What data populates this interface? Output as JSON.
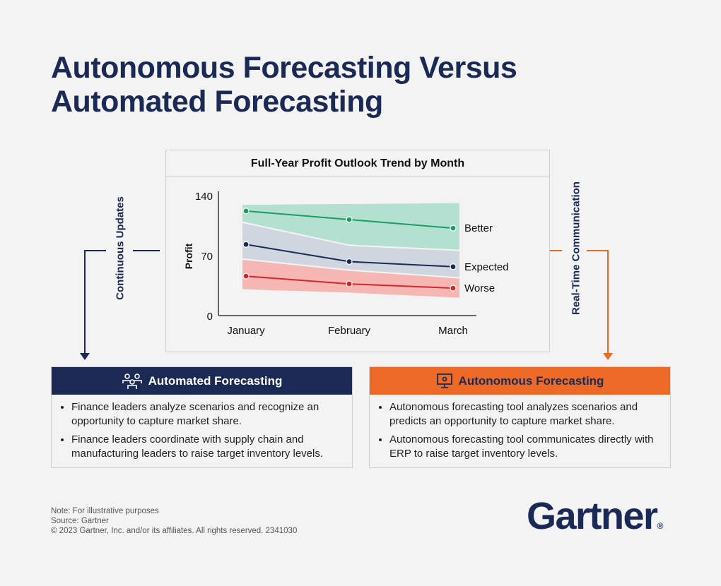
{
  "title_line1": "Autonomous Forecasting Versus",
  "title_line2": "Automated Forecasting",
  "left_flow_label": "Continuous Updates",
  "right_flow_label": "Real-Time Communication",
  "chart_data": {
    "type": "line",
    "title": "Full-Year Profit Outlook Trend by Month",
    "ylabel": "Profit",
    "xlabel": "",
    "categories": [
      "January",
      "February",
      "March"
    ],
    "ylim": [
      0,
      140
    ],
    "yticks": [
      0,
      70,
      140
    ],
    "series": [
      {
        "name": "Better",
        "color": "#1a9e64",
        "band_color": "#b4e0d1",
        "values": [
          122,
          112,
          102
        ],
        "band": [
          [
            109,
            130
          ],
          [
            82,
            131
          ],
          [
            76,
            132
          ]
        ]
      },
      {
        "name": "Expected",
        "color": "#1b2a55",
        "band_color": "#cfd6e0",
        "values": [
          83,
          63,
          57
        ],
        "band": [
          [
            66,
            109
          ],
          [
            53,
            82
          ],
          [
            44,
            76
          ]
        ]
      },
      {
        "name": "Worse",
        "color": "#d9262a",
        "band_color": "#f5b6b4",
        "values": [
          46,
          37,
          32
        ],
        "band": [
          [
            30,
            66
          ],
          [
            26,
            53
          ],
          [
            20,
            44
          ]
        ]
      }
    ]
  },
  "automated": {
    "title": "Automated Forecasting",
    "icon": "people-icon",
    "color": "#1b2a55",
    "bullets": [
      "Finance leaders analyze scenarios and recognize an opportunity to capture market share.",
      "Finance leaders coordinate with supply chain and manufacturing leaders to raise target inventory levels."
    ]
  },
  "autonomous": {
    "title": "Autonomous Forecasting",
    "icon": "monitor-gear-icon",
    "color": "#ec6a26",
    "bullets": [
      "Autonomous forecasting tool analyzes scenarios and predicts an opportunity to capture market share.",
      "Autonomous forecasting tool communicates directly with ERP to raise target inventory levels."
    ]
  },
  "footer": {
    "note": "Note: For illustrative purposes",
    "source": "Source: Gartner",
    "copyright": "© 2023 Gartner, Inc. and/or its affiliates. All rights reserved. 2341030"
  },
  "logo": "Gartner"
}
